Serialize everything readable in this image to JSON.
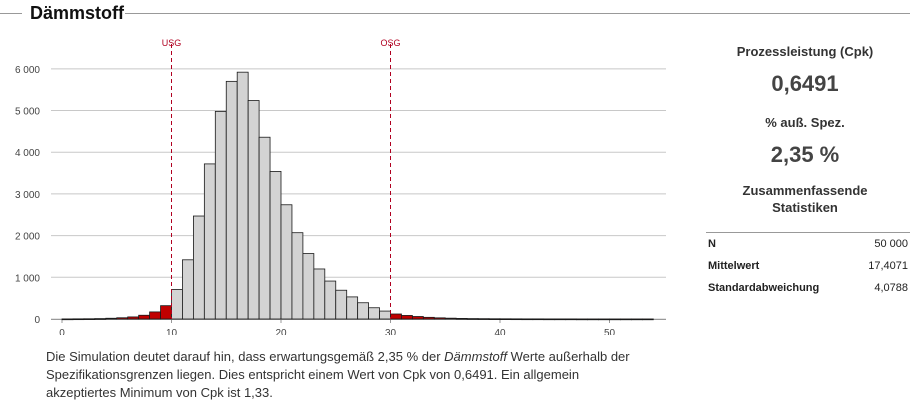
{
  "title": "Dämmstoff",
  "chart_data": {
    "type": "bar",
    "bins": [
      {
        "x0": 0,
        "x1": 1,
        "y": 2
      },
      {
        "x0": 1,
        "x1": 2,
        "y": 4
      },
      {
        "x0": 2,
        "x1": 3,
        "y": 6
      },
      {
        "x0": 3,
        "x1": 4,
        "y": 10
      },
      {
        "x0": 4,
        "x1": 5,
        "y": 18
      },
      {
        "x0": 5,
        "x1": 6,
        "y": 30
      },
      {
        "x0": 6,
        "x1": 7,
        "y": 50
      },
      {
        "x0": 7,
        "x1": 8,
        "y": 90
      },
      {
        "x0": 8,
        "x1": 9,
        "y": 170
      },
      {
        "x0": 9,
        "x1": 10,
        "y": 320
      },
      {
        "x0": 10,
        "x1": 11,
        "y": 710
      },
      {
        "x0": 11,
        "x1": 12,
        "y": 1420
      },
      {
        "x0": 12,
        "x1": 13,
        "y": 2470
      },
      {
        "x0": 13,
        "x1": 14,
        "y": 3720
      },
      {
        "x0": 14,
        "x1": 15,
        "y": 4980
      },
      {
        "x0": 15,
        "x1": 16,
        "y": 5700
      },
      {
        "x0": 16,
        "x1": 17,
        "y": 5920
      },
      {
        "x0": 17,
        "x1": 18,
        "y": 5240
      },
      {
        "x0": 18,
        "x1": 19,
        "y": 4360
      },
      {
        "x0": 19,
        "x1": 20,
        "y": 3540
      },
      {
        "x0": 20,
        "x1": 21,
        "y": 2740
      },
      {
        "x0": 21,
        "x1": 22,
        "y": 2070
      },
      {
        "x0": 22,
        "x1": 23,
        "y": 1570
      },
      {
        "x0": 23,
        "x1": 24,
        "y": 1200
      },
      {
        "x0": 24,
        "x1": 25,
        "y": 910
      },
      {
        "x0": 25,
        "x1": 26,
        "y": 690
      },
      {
        "x0": 26,
        "x1": 27,
        "y": 530
      },
      {
        "x0": 27,
        "x1": 28,
        "y": 390
      },
      {
        "x0": 28,
        "x1": 29,
        "y": 270
      },
      {
        "x0": 29,
        "x1": 30,
        "y": 190
      },
      {
        "x0": 30,
        "x1": 31,
        "y": 120
      },
      {
        "x0": 31,
        "x1": 32,
        "y": 85
      },
      {
        "x0": 32,
        "x1": 33,
        "y": 60
      },
      {
        "x0": 33,
        "x1": 34,
        "y": 40
      },
      {
        "x0": 34,
        "x1": 35,
        "y": 28
      },
      {
        "x0": 35,
        "x1": 36,
        "y": 20
      },
      {
        "x0": 36,
        "x1": 37,
        "y": 14
      },
      {
        "x0": 37,
        "x1": 38,
        "y": 10
      },
      {
        "x0": 38,
        "x1": 39,
        "y": 8
      },
      {
        "x0": 39,
        "x1": 40,
        "y": 6
      },
      {
        "x0": 40,
        "x1": 41,
        "y": 5
      },
      {
        "x0": 41,
        "x1": 42,
        "y": 4
      },
      {
        "x0": 42,
        "x1": 43,
        "y": 3
      },
      {
        "x0": 43,
        "x1": 44,
        "y": 3
      },
      {
        "x0": 44,
        "x1": 45,
        "y": 2
      },
      {
        "x0": 45,
        "x1": 46,
        "y": 2
      },
      {
        "x0": 46,
        "x1": 47,
        "y": 2
      },
      {
        "x0": 47,
        "x1": 48,
        "y": 1
      },
      {
        "x0": 48,
        "x1": 49,
        "y": 1
      },
      {
        "x0": 49,
        "x1": 50,
        "y": 1
      },
      {
        "x0": 50,
        "x1": 51,
        "y": 1
      },
      {
        "x0": 51,
        "x1": 52,
        "y": 1
      },
      {
        "x0": 52,
        "x1": 53,
        "y": 1
      },
      {
        "x0": 53,
        "x1": 54,
        "y": 1
      }
    ],
    "xlim": [
      -1,
      55
    ],
    "ylim": [
      0,
      6500
    ],
    "xticks": [
      0,
      10,
      20,
      30,
      40,
      50
    ],
    "yticks": [
      0,
      1000,
      2000,
      3000,
      4000,
      5000,
      6000
    ],
    "ytick_labels": [
      "0",
      "1 000",
      "2 000",
      "3 000",
      "4 000",
      "5 000",
      "6 000"
    ],
    "spec_lines": [
      {
        "label": "USG",
        "x": 10
      },
      {
        "label": "OSG",
        "x": 30
      }
    ],
    "grid": true,
    "colors": {
      "in_spec": "#d3d3d3",
      "out_spec": "#c00000",
      "spec_line": "#b00020",
      "grid": "#c8c8c8"
    }
  },
  "side": {
    "cpk_label": "Prozessleistung (Cpk)",
    "cpk_value": "0,6491",
    "pct_label": "% auß. Spez.",
    "pct_value": "2,35 %",
    "stats_title": "Zusammenfassende Statistiken",
    "stats": [
      {
        "key": "N",
        "value": "50 000"
      },
      {
        "key": "Mittelwert",
        "value": "17,4071"
      },
      {
        "key": "Standardabweichung",
        "value": "4,0788"
      }
    ]
  },
  "description": {
    "part1": "Die Simulation deutet darauf hin, dass erwartungsgemäß 2,35 % der ",
    "emph": "Dämmstoff",
    "part2": " Werte außerhalb der Spezifikationsgrenzen liegen. Dies entspricht einem Wert von Cpk von 0,6491. Ein allgemein akzeptiertes Minimum von Cpk ist 1,33."
  }
}
